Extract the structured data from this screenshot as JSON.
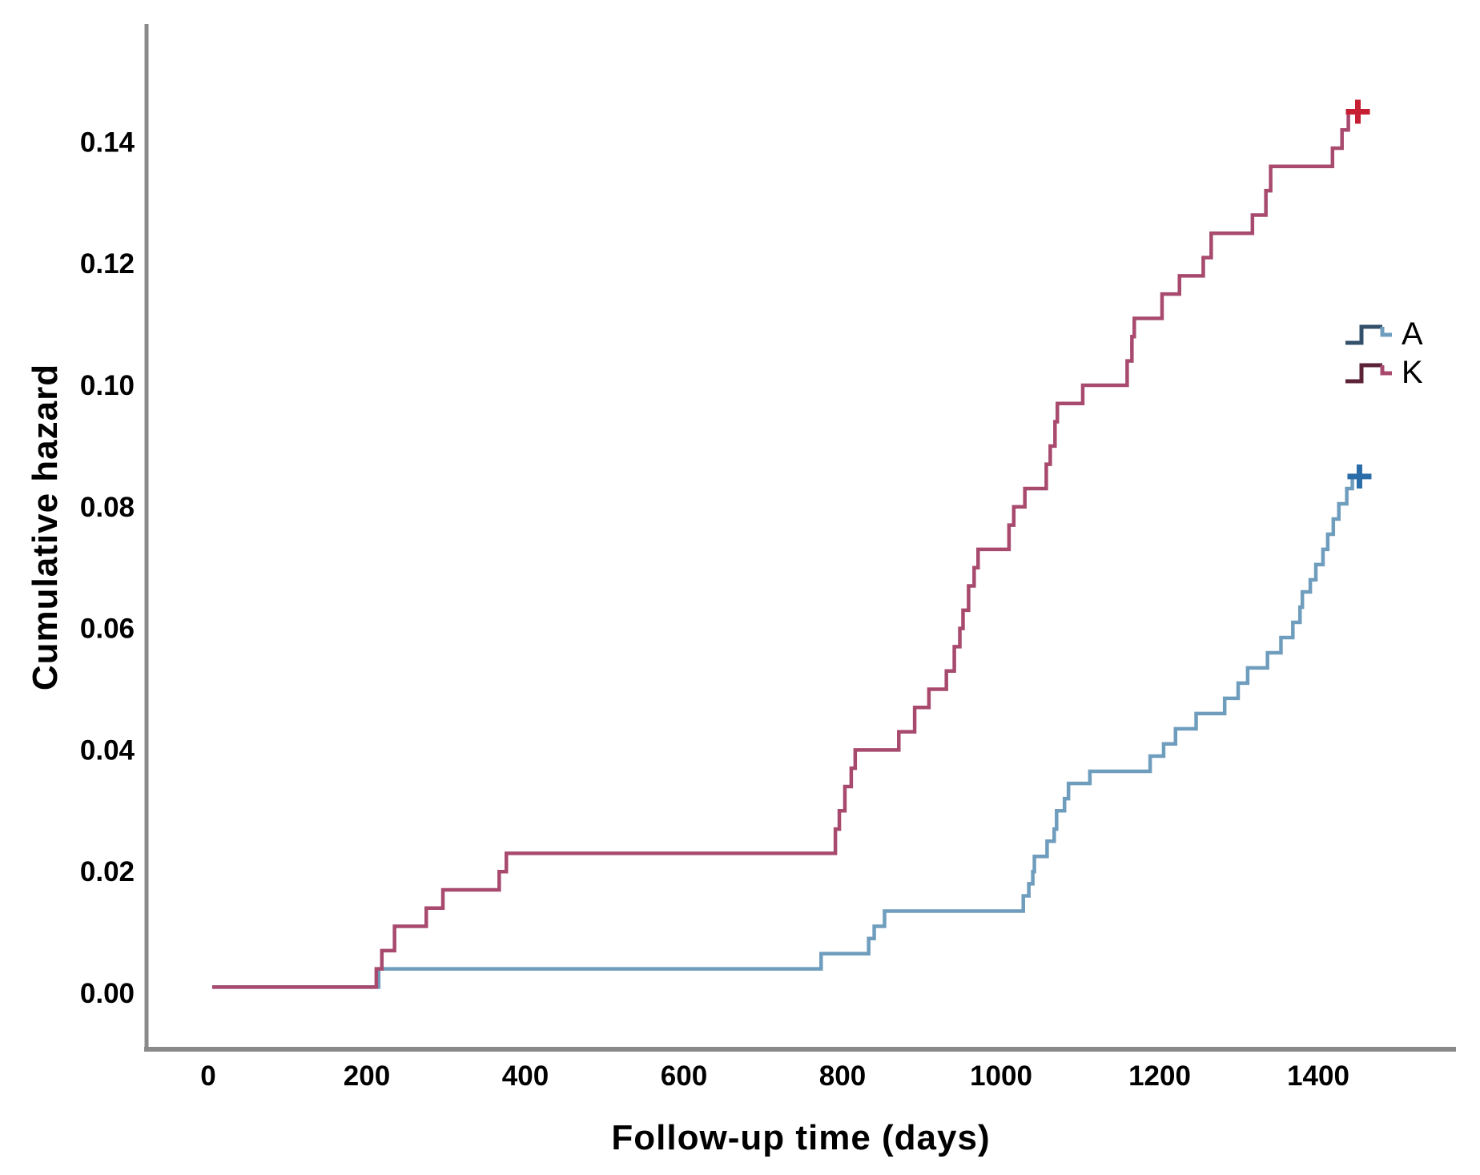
{
  "chart_data": {
    "type": "line",
    "subtype": "step-function-cumulative-hazard",
    "title": "",
    "xlabel": "Follow-up time (days)",
    "ylabel": "Cumulative hazard",
    "xtick_values": [
      0,
      200,
      400,
      600,
      800,
      1000,
      1200,
      1400
    ],
    "xtick_labels": [
      "0",
      "200",
      "400",
      "600",
      "800",
      "1000",
      "1200",
      "1400"
    ],
    "ytick_values": [
      0.0,
      0.02,
      0.04,
      0.06,
      0.08,
      0.1,
      0.12,
      0.14
    ],
    "ytick_labels": [
      "0.00",
      "0.02",
      "0.04",
      "0.06",
      "0.08",
      "0.10",
      "0.12",
      "0.14"
    ],
    "xlim": [
      -80,
      1575
    ],
    "ylim": [
      -0.009,
      0.159
    ],
    "grid": false,
    "legend_position": "right-middle",
    "axis_color": "#8a8a8a",
    "text_color": "#000000",
    "background_color": "#ffffff",
    "series": [
      {
        "name": "A",
        "color": "#6f9dbd",
        "dark_color": "#33506b",
        "censor_color": "#2a6da8",
        "censor": [
          1452,
          0.085
        ],
        "points": [
          [
            5,
            0.001
          ],
          [
            215,
            0.004
          ],
          [
            773,
            0.0065
          ],
          [
            833,
            0.009
          ],
          [
            840,
            0.011
          ],
          [
            853,
            0.0135
          ],
          [
            1028,
            0.016
          ],
          [
            1035,
            0.018
          ],
          [
            1040,
            0.02
          ],
          [
            1042,
            0.0225
          ],
          [
            1058,
            0.025
          ],
          [
            1067,
            0.027
          ],
          [
            1070,
            0.03
          ],
          [
            1080,
            0.032
          ],
          [
            1085,
            0.0345
          ],
          [
            1112,
            0.0365
          ],
          [
            1188,
            0.039
          ],
          [
            1205,
            0.041
          ],
          [
            1220,
            0.0435
          ],
          [
            1246,
            0.046
          ],
          [
            1282,
            0.0485
          ],
          [
            1299,
            0.051
          ],
          [
            1311,
            0.0535
          ],
          [
            1336,
            0.056
          ],
          [
            1353,
            0.0585
          ],
          [
            1368,
            0.061
          ],
          [
            1377,
            0.0635
          ],
          [
            1380,
            0.066
          ],
          [
            1390,
            0.068
          ],
          [
            1397,
            0.0705
          ],
          [
            1406,
            0.073
          ],
          [
            1412,
            0.0755
          ],
          [
            1419,
            0.078
          ],
          [
            1426,
            0.0805
          ],
          [
            1436,
            0.083
          ],
          [
            1443,
            0.085
          ]
        ]
      },
      {
        "name": "K",
        "color": "#a84a6e",
        "dark_color": "#5c2338",
        "censor_color": "#c61f33",
        "censor": [
          1450,
          0.145
        ],
        "points": [
          [
            5,
            0.001
          ],
          [
            212,
            0.004
          ],
          [
            219,
            0.007
          ],
          [
            235,
            0.011
          ],
          [
            275,
            0.014
          ],
          [
            296,
            0.017
          ],
          [
            367,
            0.02
          ],
          [
            376,
            0.023
          ],
          [
            791,
            0.027
          ],
          [
            796,
            0.03
          ],
          [
            803,
            0.034
          ],
          [
            811,
            0.037
          ],
          [
            816,
            0.04
          ],
          [
            871,
            0.043
          ],
          [
            891,
            0.047
          ],
          [
            909,
            0.05
          ],
          [
            931,
            0.053
          ],
          [
            941,
            0.057
          ],
          [
            948,
            0.06
          ],
          [
            952,
            0.063
          ],
          [
            959,
            0.067
          ],
          [
            966,
            0.07
          ],
          [
            971,
            0.073
          ],
          [
            1010,
            0.077
          ],
          [
            1016,
            0.08
          ],
          [
            1030,
            0.083
          ],
          [
            1057,
            0.087
          ],
          [
            1062,
            0.09
          ],
          [
            1068,
            0.094
          ],
          [
            1071,
            0.097
          ],
          [
            1103,
            0.1
          ],
          [
            1159,
            0.104
          ],
          [
            1165,
            0.108
          ],
          [
            1168,
            0.111
          ],
          [
            1203,
            0.115
          ],
          [
            1225,
            0.118
          ],
          [
            1255,
            0.121
          ],
          [
            1265,
            0.125
          ],
          [
            1317,
            0.128
          ],
          [
            1334,
            0.132
          ],
          [
            1340,
            0.136
          ],
          [
            1418,
            0.139
          ],
          [
            1430,
            0.142
          ],
          [
            1438,
            0.145
          ]
        ]
      }
    ]
  }
}
